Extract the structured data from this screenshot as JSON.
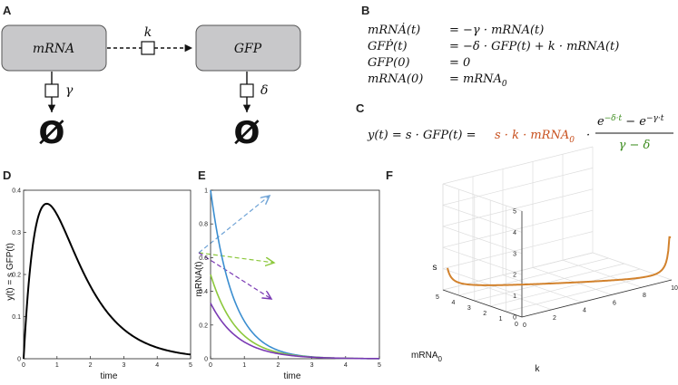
{
  "panels": {
    "a": "A",
    "b": "B",
    "c": "C",
    "d": "D",
    "e": "E",
    "f": "F"
  },
  "schematic": {
    "box1": "mRNA",
    "box2": "GFP",
    "rate_k": "k",
    "rate_gamma": "γ",
    "rate_delta": "δ",
    "null_symbol": "Ø"
  },
  "equations": {
    "l1_lhs": "mRNȦ(t)",
    "l1_rhs": "= −γ · mRNA(t)",
    "l2_lhs": "GFṖ(t)",
    "l2_rhs": "= −δ · GFP(t) + k · mRNA(t)",
    "l3_lhs": "GFP(0)",
    "l3_rhs": "= 0",
    "l4_lhs": "mRNA(0)",
    "l4_rhs": "= mRNA",
    "l4_sub": "0"
  },
  "eqC": {
    "lhs": "y(t) = s · GFP(t) =",
    "red": "s · k · mRNA",
    "red_sub": "0",
    "dot": "·",
    "num_a": "e",
    "num_a_exp": "−δ·t",
    "num_mid": " − e",
    "num_b_exp": "−γ·t",
    "den": "γ − δ"
  },
  "colors": {
    "box_fill": "#c8c8ca",
    "red": "#c8501e",
    "green": "#3c8c1e",
    "blue": "#3b8ed0",
    "lime": "#8cc83c",
    "purple": "#7a3ab4",
    "orange": "#d2822d"
  },
  "chart_data": [
    {
      "id": "D",
      "type": "line",
      "xlabel": "time",
      "ylabel": "y(t) = s GFP(t)",
      "xlim": [
        0,
        5
      ],
      "ylim": [
        0,
        0.4
      ],
      "xticks": [
        "0",
        "1",
        "2",
        "3",
        "4",
        "5"
      ],
      "yticks": [
        "0",
        "0.1",
        "0.2",
        "0.3",
        "0.4"
      ],
      "series": [
        {
          "function": "exp(-t) - exp(-2t) scaled",
          "peak": [
            1.0,
            0.368
          ]
        }
      ]
    },
    {
      "id": "E",
      "type": "line",
      "xlabel": "time",
      "ylabel": "mRNA(t)",
      "xlim": [
        0,
        5
      ],
      "ylim": [
        0,
        1
      ],
      "xticks": [
        "0",
        "1",
        "2",
        "3",
        "4",
        "5"
      ],
      "yticks": [
        "0",
        "0.2",
        "0.4",
        "0.6",
        "0.8",
        "1"
      ],
      "series": [
        {
          "color": "#3b8ed0",
          "y0": 1.0,
          "decay": 1.5
        },
        {
          "color": "#8cc83c",
          "y0": 0.5,
          "decay": 1.3
        },
        {
          "color": "#7a3ab4",
          "y0": 0.33,
          "decay": 1.2
        }
      ]
    },
    {
      "id": "F",
      "type": "line",
      "zlabel": "s",
      "xlabel": "k",
      "ylabel": "mRNA",
      "ylabel_sub": "0",
      "xticks": [
        "0",
        "2",
        "4",
        "6",
        "8",
        "10"
      ],
      "yticks": [
        "0",
        "1",
        "2",
        "3",
        "4",
        "5"
      ],
      "zticks": [
        "0",
        "1",
        "2",
        "3",
        "4",
        "5"
      ],
      "series": [
        {
          "color": "#d2822d",
          "relation": "s · k · mRNA0 = const"
        }
      ]
    }
  ]
}
